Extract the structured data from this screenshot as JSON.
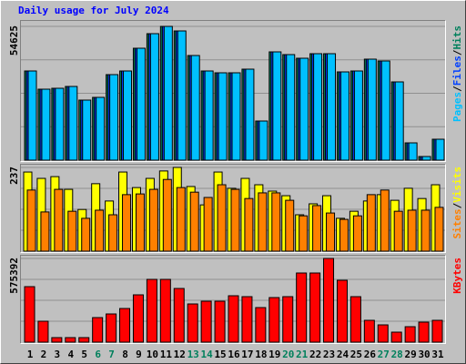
{
  "chart_data": [
    {
      "type": "bar",
      "title": "Daily usage for July 2024",
      "ylim": [
        0,
        54625
      ],
      "yticks": [
        54625
      ],
      "legend_separator": "/",
      "series": [
        {
          "name": "Hits",
          "color": "#00805c",
          "values": [
            36417,
            28984,
            29356,
            30099,
            24525,
            25640,
            34930,
            36417,
            45706,
            51652,
            54625,
            52767,
            42734,
            36417,
            35674,
            35674,
            37160,
            15979,
            44220,
            43105,
            41619,
            43477,
            43477,
            36045,
            36417,
            41247,
            40504,
            31957,
            7060,
            1486,
            8547
          ]
        },
        {
          "name": "Files",
          "color": "#0040ff",
          "values": [
            36417,
            28984,
            29356,
            30099,
            24525,
            25640,
            34930,
            36417,
            45706,
            51652,
            54625,
            52767,
            42734,
            36417,
            35674,
            35674,
            37160,
            15979,
            44220,
            43105,
            41619,
            43477,
            43477,
            36045,
            36417,
            41247,
            40504,
            31957,
            7060,
            1486,
            8547
          ]
        },
        {
          "name": "Pages",
          "color": "#00c0ff",
          "values": [
            36417,
            28984,
            29356,
            30099,
            24525,
            25640,
            34930,
            36417,
            45706,
            51652,
            54625,
            52767,
            42734,
            36417,
            35674,
            35674,
            37160,
            15979,
            44220,
            43105,
            41619,
            43477,
            43477,
            36045,
            36417,
            41247,
            40504,
            31957,
            7060,
            1486,
            8547
          ]
        }
      ]
    },
    {
      "type": "bar",
      "ylim": [
        0,
        237
      ],
      "yticks": [
        237
      ],
      "legend_separator": "/",
      "series": [
        {
          "name": "Visits",
          "color": "#ffff00",
          "values": [
            224,
            206,
            211,
            175,
            118,
            191,
            142,
            224,
            180,
            206,
            227,
            237,
            183,
            131,
            224,
            178,
            206,
            188,
            170,
            157,
            103,
            134,
            157,
            93,
            113,
            142,
            160,
            144,
            178,
            149,
            188
          ]
        },
        {
          "name": "Sites",
          "color": "#ff8000",
          "values": [
            173,
            111,
            175,
            113,
            93,
            116,
            103,
            160,
            162,
            175,
            203,
            180,
            167,
            152,
            188,
            175,
            149,
            165,
            165,
            144,
            100,
            129,
            108,
            90,
            100,
            160,
            173,
            113,
            116,
            116,
            124
          ]
        }
      ]
    },
    {
      "type": "bar",
      "ylim": [
        0,
        575392
      ],
      "yticks": [
        575392
      ],
      "categories": [
        "1",
        "2",
        "3",
        "4",
        "5",
        "6",
        "7",
        "8",
        "9",
        "10",
        "11",
        "12",
        "13",
        "14",
        "15",
        "16",
        "17",
        "18",
        "19",
        "20",
        "21",
        "22",
        "23",
        "24",
        "25",
        "26",
        "27",
        "28",
        "29",
        "30",
        "31"
      ],
      "category_colors": [
        "#000",
        "#000",
        "#000",
        "#000",
        "#000",
        "#00805c",
        "#00805c",
        "#000",
        "#000",
        "#000",
        "#000",
        "#000",
        "#00805c",
        "#00805c",
        "#000",
        "#000",
        "#000",
        "#000",
        "#000",
        "#00805c",
        "#00805c",
        "#000",
        "#000",
        "#000",
        "#000",
        "#000",
        "#00805c",
        "#00805c",
        "#000",
        "#000",
        "#000"
      ],
      "series": [
        {
          "name": "KBytes",
          "color": "#ff0000",
          "values": [
            381494,
            143842,
            31270,
            31270,
            31270,
            168858,
            193874,
            231398,
            325208,
            431526,
            431526,
            368986,
            262668,
            281430,
            281430,
            318954,
            312700,
            237652,
            306446,
            312700,
            475304,
            475304,
            575392,
            425272,
            312700,
            150096,
            118826,
            68794,
            106318,
            137588,
            150096
          ]
        }
      ]
    }
  ]
}
